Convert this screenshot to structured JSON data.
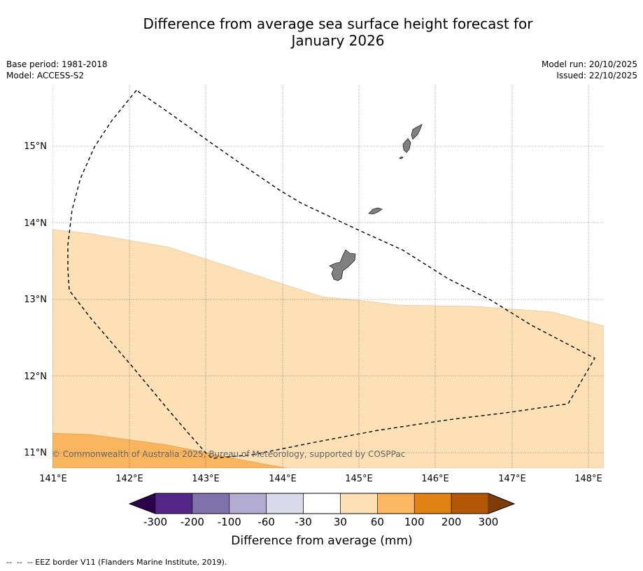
{
  "title": {
    "line1": "Difference from average sea surface height forecast for",
    "line2": "January 2026"
  },
  "meta": {
    "base_period": "Base period: 1981-2018",
    "model": "Model: ACCESS-S2",
    "model_run": "Model run: 20/10/2025",
    "issued": "Issued: 22/10/2025"
  },
  "map": {
    "longitudes": [
      "141°E",
      "142°E",
      "143°E",
      "144°E",
      "145°E",
      "146°E",
      "147°E",
      "148°E"
    ],
    "latitudes": [
      "15°N",
      "14°N",
      "13°N",
      "12°N",
      "11°N"
    ],
    "credit": "© Commonwealth of Australia 2025, Bureau of Meteorology, supported by COSPPac",
    "features": {
      "anomaly_30_60_color": "#fde0b5",
      "anomaly_60_100_color": "#fbb55f",
      "land_color": "#808080",
      "eez_border_style": "dashed"
    }
  },
  "colorbar": {
    "title": "Difference from average (mm)",
    "ticks": [
      "-300",
      "-200",
      "-100",
      "-60",
      "-30",
      "30",
      "60",
      "100",
      "200",
      "300"
    ],
    "under_color": "#2d004b",
    "over_color": "#7f3b08",
    "colors": [
      "#542788",
      "#8073ac",
      "#b2abd2",
      "#d8daeb",
      "#ffffff",
      "#fee0b6",
      "#fdb863",
      "#e08214",
      "#b35806"
    ]
  },
  "footnote": "--  --  -- EEZ border V11 (Flanders Marine Institute, 2019)."
}
